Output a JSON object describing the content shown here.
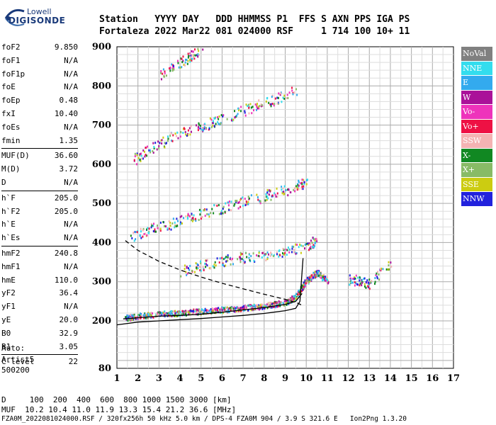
{
  "logo": {
    "line1": "Lowell",
    "line2": "DIGISONDE"
  },
  "header": {
    "row1": "Station   YYYY DAY   DDD HHMMSS P1  FFS S AXN PPS IGA PS",
    "row2": "Fortaleza 2022 Mar22 081 024000 RSF     1 714 100 10+ 11"
  },
  "params": [
    {
      "name": "foF2",
      "value": "9.850"
    },
    {
      "name": "foF1",
      "value": "N/A"
    },
    {
      "name": "foF1p",
      "value": "N/A"
    },
    {
      "name": "foE",
      "value": "N/A"
    },
    {
      "name": "foEp",
      "value": "0.48"
    },
    {
      "name": "fxI",
      "value": "10.40"
    },
    {
      "name": "foEs",
      "value": "N/A"
    },
    {
      "name": "fmin",
      "value": "1.35"
    },
    {
      "sep": true
    },
    {
      "name": "MUF(D)",
      "value": "36.60"
    },
    {
      "name": "M(D)",
      "value": "3.72"
    },
    {
      "name": "D",
      "value": "N/A"
    },
    {
      "sep": true
    },
    {
      "name": "h`F",
      "value": "205.0"
    },
    {
      "name": "h`F2",
      "value": "205.0"
    },
    {
      "name": "h`E",
      "value": "N/A"
    },
    {
      "name": "h`Es",
      "value": "N/A"
    },
    {
      "sep": true
    },
    {
      "name": "hmF2",
      "value": "240.8"
    },
    {
      "name": "hmF1",
      "value": "N/A"
    },
    {
      "name": "hmE",
      "value": "110.0"
    },
    {
      "name": "yF2",
      "value": "36.4"
    },
    {
      "name": "yF1",
      "value": "N/A"
    },
    {
      "name": "yE",
      "value": "20.0"
    },
    {
      "name": "B0",
      "value": "32.9"
    },
    {
      "name": "B1",
      "value": "3.05"
    },
    {
      "sep": true
    },
    {
      "name": "C-level",
      "value": "22"
    }
  ],
  "auto": {
    "line1": "Auto:",
    "line2": "Artist5",
    "line3": "500200"
  },
  "legend": [
    {
      "label": "NoVal",
      "color": "#808080"
    },
    {
      "label": "NNE",
      "color": "#33ddee"
    },
    {
      "label": "E",
      "color": "#33aaee"
    },
    {
      "label": "W",
      "color": "#aa1199"
    },
    {
      "label": "Vo-",
      "color": "#ee33bb"
    },
    {
      "label": "Vo+",
      "color": "#ee1144"
    },
    {
      "label": "SSW",
      "color": "#f5b3b3"
    },
    {
      "label": "X-",
      "color": "#118822"
    },
    {
      "label": "X+",
      "color": "#88bb66"
    },
    {
      "label": "SSE",
      "color": "#cccc11"
    },
    {
      "label": "NNW",
      "color": "#2222dd"
    }
  ],
  "footer": {
    "d_line": "D     100  200  400  600  800 1000 1500 3000 [km]",
    "muf_line": "MUF  10.2 10.4 11.0 11.9 13.3 15.4 21.2 36.6 [MHz]",
    "file_line": "FZA0M_2022081024000.RSF / 320fx256h 50 kHz 5.0 km / DPS-4 FZA0M 904 / 3.9 S 321.6 E   Ion2Png 1.3.20"
  },
  "chart_data": {
    "type": "scatter",
    "title": "",
    "xlabel": "",
    "ylabel": "",
    "xlim": [
      1,
      17
    ],
    "ylim": [
      80,
      900
    ],
    "x_ticks": [
      1,
      2,
      3,
      4,
      5,
      6,
      7,
      8,
      9,
      10,
      11,
      12,
      13,
      14,
      15,
      16,
      17
    ],
    "y_ticks": [
      80,
      200,
      300,
      400,
      500,
      600,
      700,
      800,
      900
    ],
    "grid": true,
    "legend_position": "right",
    "series": [
      {
        "name": "trace-1",
        "values": [
          [
            1.4,
            205
          ],
          [
            2,
            210
          ],
          [
            3,
            215
          ],
          [
            4,
            218
          ],
          [
            5,
            222
          ],
          [
            6,
            226
          ],
          [
            7,
            230
          ],
          [
            8,
            236
          ],
          [
            9,
            244
          ],
          [
            9.5,
            260
          ],
          [
            10,
            300
          ],
          [
            10.5,
            320
          ],
          [
            11,
            300
          ]
        ]
      },
      {
        "name": "trace-2",
        "values": [
          [
            1.6,
            405
          ],
          [
            2.5,
            425
          ],
          [
            3.5,
            440
          ],
          [
            4.5,
            460
          ],
          [
            5.5,
            475
          ],
          [
            6.5,
            490
          ],
          [
            7.5,
            505
          ],
          [
            8.5,
            520
          ],
          [
            9.5,
            535
          ],
          [
            10,
            550
          ]
        ]
      },
      {
        "name": "trace-3",
        "values": [
          [
            1.8,
            605
          ],
          [
            2.5,
            630
          ],
          [
            3.5,
            660
          ],
          [
            4.5,
            680
          ],
          [
            5.5,
            700
          ],
          [
            6.5,
            720
          ],
          [
            7.5,
            740
          ],
          [
            8.5,
            760
          ],
          [
            9.5,
            780
          ]
        ]
      },
      {
        "name": "trace-4",
        "values": [
          [
            3,
            820
          ],
          [
            4,
            850
          ],
          [
            4.5,
            870
          ],
          [
            5,
            890
          ]
        ]
      },
      {
        "name": "trace-5",
        "values": [
          [
            4,
            320
          ],
          [
            5,
            335
          ],
          [
            6,
            345
          ],
          [
            7,
            355
          ],
          [
            8,
            360
          ],
          [
            9,
            370
          ],
          [
            10,
            385
          ],
          [
            10.5,
            400
          ]
        ]
      },
      {
        "name": "trace-6",
        "values": [
          [
            12,
            300
          ],
          [
            12.5,
            295
          ],
          [
            13,
            290
          ],
          [
            14,
            340
          ]
        ]
      }
    ],
    "profile_curves": [
      {
        "name": "solid-profile",
        "values": [
          [
            1,
            190
          ],
          [
            2,
            197
          ],
          [
            3,
            200
          ],
          [
            4,
            203
          ],
          [
            5,
            206
          ],
          [
            6,
            210
          ],
          [
            7,
            214
          ],
          [
            8,
            219
          ],
          [
            9,
            226
          ],
          [
            9.5,
            232
          ],
          [
            9.7,
            250
          ],
          [
            9.85,
            360
          ]
        ]
      },
      {
        "name": "dashed-trace",
        "values": [
          [
            1.4,
            405
          ],
          [
            2,
            380
          ],
          [
            3,
            352
          ],
          [
            4,
            330
          ],
          [
            5,
            312
          ],
          [
            6,
            296
          ],
          [
            7,
            282
          ],
          [
            8,
            268
          ],
          [
            9,
            255
          ],
          [
            9.6,
            245
          ],
          [
            9.8,
            240
          ]
        ]
      },
      {
        "name": "lower-trace",
        "values": [
          [
            1.3,
            205
          ],
          [
            2,
            208
          ],
          [
            3,
            212
          ],
          [
            4,
            214
          ],
          [
            5,
            217
          ],
          [
            6,
            222
          ],
          [
            7,
            228
          ],
          [
            8,
            234
          ],
          [
            9,
            242
          ],
          [
            9.5,
            250
          ],
          [
            9.8,
            270
          ]
        ]
      }
    ]
  }
}
